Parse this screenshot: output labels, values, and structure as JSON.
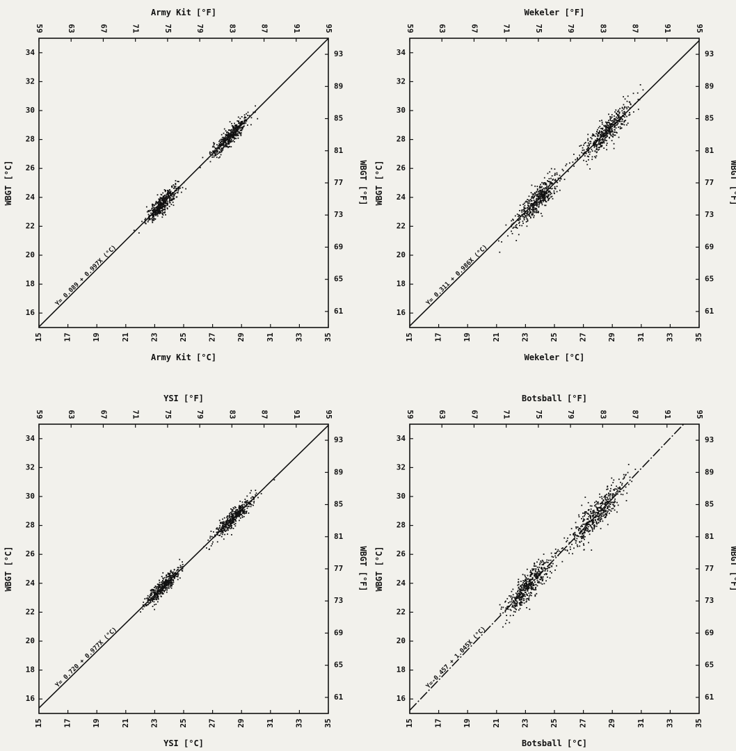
{
  "page": {
    "background_color": "#f2f1ec",
    "ink_color": "#111111"
  },
  "chart_data": [
    {
      "type": "scatter",
      "title": "Army Kit [°F]",
      "xlabel": "Army Kit [°C]",
      "ylabel": "WBGT [°C]",
      "ylabel_right": "WBGT [°F]",
      "xlim": [
        15,
        35
      ],
      "ylim": [
        15,
        35
      ],
      "x_ticks": [
        15,
        17,
        19,
        21,
        23,
        25,
        27,
        29,
        31,
        33,
        35
      ],
      "y_ticks": [
        16,
        18,
        20,
        22,
        24,
        26,
        28,
        30,
        32,
        34
      ],
      "f_ticks": [
        59,
        63,
        67,
        71,
        75,
        79,
        83,
        87,
        91,
        95
      ],
      "f_ticks_right": [
        61,
        65,
        69,
        73,
        77,
        81,
        85,
        89,
        93
      ],
      "regression": {
        "intercept": 0.089,
        "slope": 0.9971,
        "label": "Y= 0.089 + 0.997X (°C)",
        "style": "solid"
      },
      "point_clusters": [
        {
          "center": 23.5,
          "spread": 0.55,
          "scatter": 0.32,
          "count": 420
        },
        {
          "center": 28.2,
          "spread": 0.65,
          "scatter": 0.32,
          "count": 420
        }
      ]
    },
    {
      "type": "scatter",
      "title": "Wekeler [°F]",
      "xlabel": "Wekeler [°C]",
      "ylabel": "WBGT [°C]",
      "ylabel_right": "WBGT [°F]",
      "xlim": [
        15,
        35
      ],
      "ylim": [
        15,
        35
      ],
      "x_ticks": [
        15,
        17,
        19,
        21,
        23,
        25,
        27,
        29,
        31,
        33,
        35
      ],
      "y_ticks": [
        16,
        18,
        20,
        22,
        24,
        26,
        28,
        30,
        32,
        34
      ],
      "f_ticks": [
        59,
        63,
        67,
        71,
        75,
        79,
        83,
        87,
        91,
        95
      ],
      "f_ticks_right": [
        61,
        65,
        69,
        73,
        77,
        81,
        85,
        89,
        93
      ],
      "regression": {
        "intercept": 0.311,
        "slope": 0.9863,
        "label": "Y= 0.311 + 0.986X (°C)",
        "style": "solid"
      },
      "point_clusters": [
        {
          "center": 23.8,
          "spread": 0.8,
          "scatter": 0.45,
          "count": 460
        },
        {
          "center": 28.5,
          "spread": 0.9,
          "scatter": 0.45,
          "count": 460
        }
      ]
    },
    {
      "type": "scatter",
      "title": "YSI [°F]",
      "xlabel": "YSI [°C]",
      "ylabel": "WBGT [°C]",
      "ylabel_right": "WBGT [°F]",
      "xlim": [
        15,
        35
      ],
      "ylim": [
        15,
        35
      ],
      "x_ticks": [
        15,
        17,
        19,
        21,
        23,
        25,
        27,
        29,
        31,
        33,
        35
      ],
      "y_ticks": [
        16,
        18,
        20,
        22,
        24,
        26,
        28,
        30,
        32,
        34
      ],
      "f_ticks": [
        59,
        63,
        67,
        71,
        75,
        79,
        83,
        87,
        91,
        95
      ],
      "f_ticks_right": [
        61,
        65,
        69,
        73,
        77,
        81,
        85,
        89,
        93
      ],
      "regression": {
        "intercept": 0.72,
        "slope": 0.9772,
        "label": "Y= 0.720 + 0.977X (°C)",
        "style": "solid"
      },
      "point_clusters": [
        {
          "center": 23.6,
          "spread": 0.6,
          "scatter": 0.3,
          "count": 420
        },
        {
          "center": 28.4,
          "spread": 0.7,
          "scatter": 0.3,
          "count": 420
        }
      ]
    },
    {
      "type": "scatter",
      "title": "Botsball [°F]",
      "xlabel": "Botsball [°C]",
      "ylabel": "WBGT [°C]",
      "ylabel_right": "WBGT [°F]",
      "xlim": [
        15,
        35
      ],
      "ylim": [
        15,
        35
      ],
      "x_ticks": [
        15,
        17,
        19,
        21,
        23,
        25,
        27,
        29,
        31,
        33,
        35
      ],
      "y_ticks": [
        16,
        18,
        20,
        22,
        24,
        26,
        28,
        30,
        32,
        34
      ],
      "f_ticks": [
        59,
        63,
        67,
        71,
        75,
        79,
        83,
        87,
        91,
        95
      ],
      "f_ticks_right": [
        61,
        65,
        69,
        73,
        77,
        81,
        85,
        89,
        93
      ],
      "regression": {
        "intercept": -0.457,
        "slope": 1.045,
        "label": "Y=-0.457 + 1.045X (°C)",
        "style": "dashed"
      },
      "point_clusters": [
        {
          "center": 23.2,
          "spread": 0.8,
          "scatter": 0.5,
          "count": 480
        },
        {
          "center": 27.8,
          "spread": 1.0,
          "scatter": 0.55,
          "count": 480
        }
      ]
    }
  ]
}
